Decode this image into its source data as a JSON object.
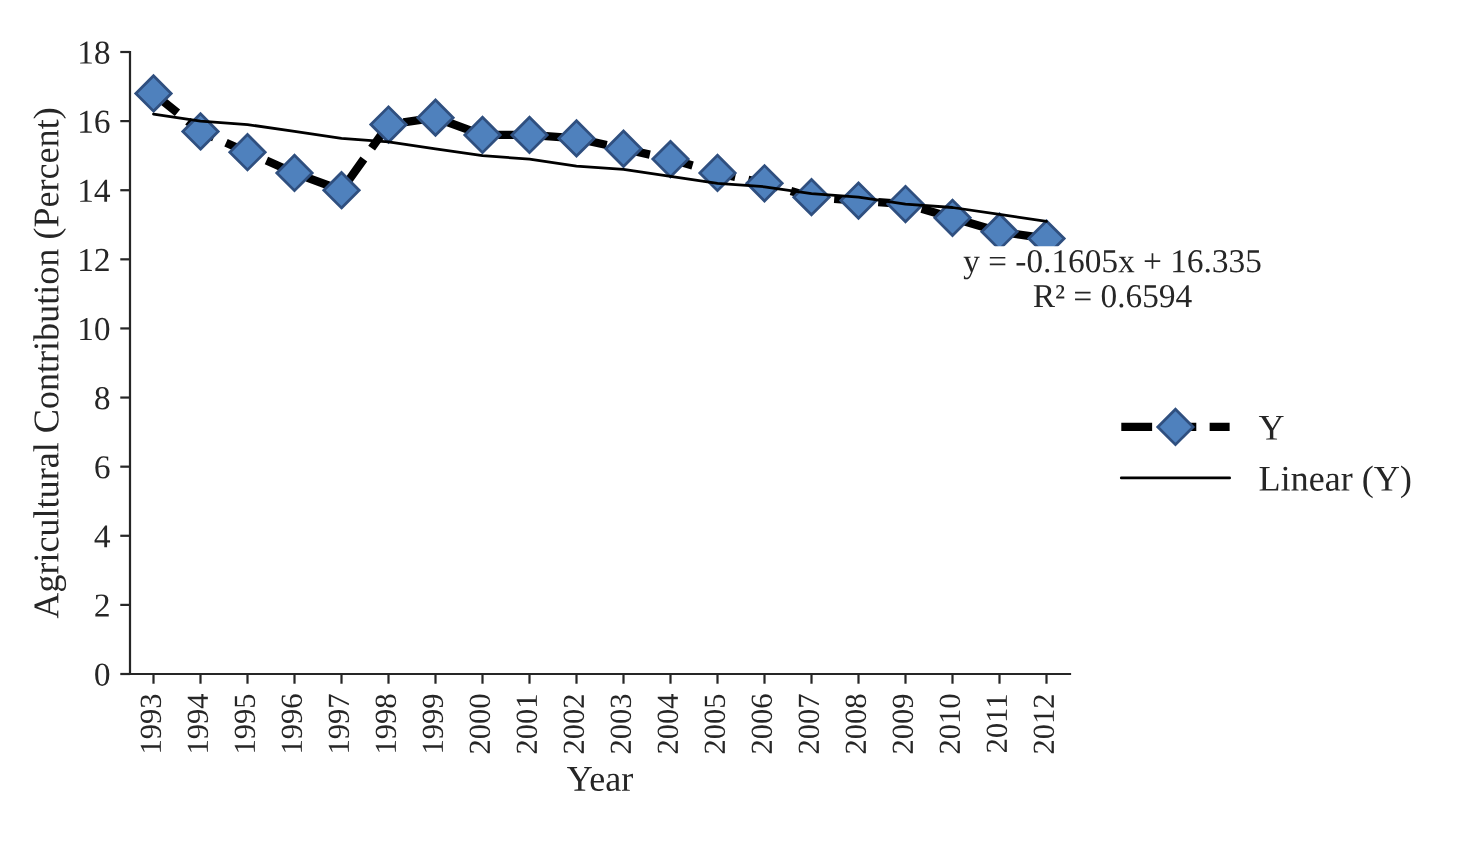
{
  "chart_data": {
    "type": "line",
    "xlabel": "Year",
    "ylabel": "Agricultural Contribution (Percent)",
    "categories": [
      "1993",
      "1994",
      "1995",
      "1996",
      "1997",
      "1998",
      "1999",
      "2000",
      "2001",
      "2002",
      "2003",
      "2004",
      "2005",
      "2006",
      "2007",
      "2008",
      "2009",
      "2010",
      "2011",
      "2012"
    ],
    "series": [
      {
        "name": "Y",
        "color": "#4f81bd",
        "marker": "diamond",
        "line_style": "dashed",
        "values": [
          16.8,
          15.7,
          15.1,
          14.5,
          14.0,
          15.9,
          16.1,
          15.6,
          15.6,
          15.5,
          15.2,
          14.9,
          14.5,
          14.2,
          13.8,
          13.7,
          13.6,
          13.2,
          12.8,
          12.6
        ]
      },
      {
        "name": "Linear (Y)",
        "color": "#000000",
        "marker": "none",
        "line_style": "solid",
        "values": [
          16.2,
          16.0,
          15.9,
          15.7,
          15.5,
          15.4,
          15.2,
          15.0,
          14.9,
          14.7,
          14.6,
          14.4,
          14.2,
          14.1,
          13.9,
          13.8,
          13.6,
          13.5,
          13.3,
          13.1
        ]
      }
    ],
    "annotations": [
      {
        "text": "y = -0.1605x + 16.335\nR² = 0.6594",
        "x": "2012",
        "y": 13.1
      }
    ],
    "ylim": [
      0,
      18
    ],
    "yticks": [
      0,
      2,
      4,
      6,
      8,
      10,
      12,
      14,
      16,
      18
    ],
    "grid": false,
    "legend": "right"
  }
}
